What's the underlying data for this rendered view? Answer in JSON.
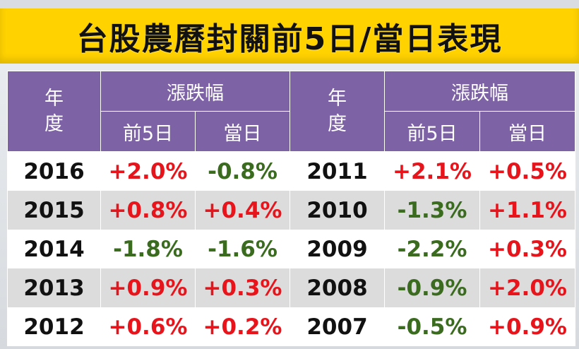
{
  "title": "台股農曆封關前5日/當日表現",
  "header": {
    "year_label_line1": "年",
    "year_label_line2": "度",
    "change_label": "漲跌幅",
    "before5_label": "前5日",
    "sameday_label": "當日"
  },
  "colors": {
    "banner": "#ffd200",
    "header_bg": "#7e62a6",
    "positive": "#e8141b",
    "negative": "#3a6b1f"
  },
  "rows": [
    {
      "left": {
        "year": "2016",
        "before5": "+2.0%",
        "sameday": "-0.8%"
      },
      "right": {
        "year": "2011",
        "before5": "+2.1%",
        "sameday": "+0.5%"
      }
    },
    {
      "left": {
        "year": "2015",
        "before5": "+0.8%",
        "sameday": "+0.4%"
      },
      "right": {
        "year": "2010",
        "before5": "-1.3%",
        "sameday": "+1.1%"
      }
    },
    {
      "left": {
        "year": "2014",
        "before5": "-1.8%",
        "sameday": "-1.6%"
      },
      "right": {
        "year": "2009",
        "before5": "-2.2%",
        "sameday": "+0.3%"
      }
    },
    {
      "left": {
        "year": "2013",
        "before5": "+0.9%",
        "sameday": "+0.3%"
      },
      "right": {
        "year": "2008",
        "before5": "-0.9%",
        "sameday": "+2.0%"
      }
    },
    {
      "left": {
        "year": "2012",
        "before5": "+0.6%",
        "sameday": "+0.2%"
      },
      "right": {
        "year": "2007",
        "before5": "-0.5%",
        "sameday": "+0.9%"
      }
    }
  ]
}
